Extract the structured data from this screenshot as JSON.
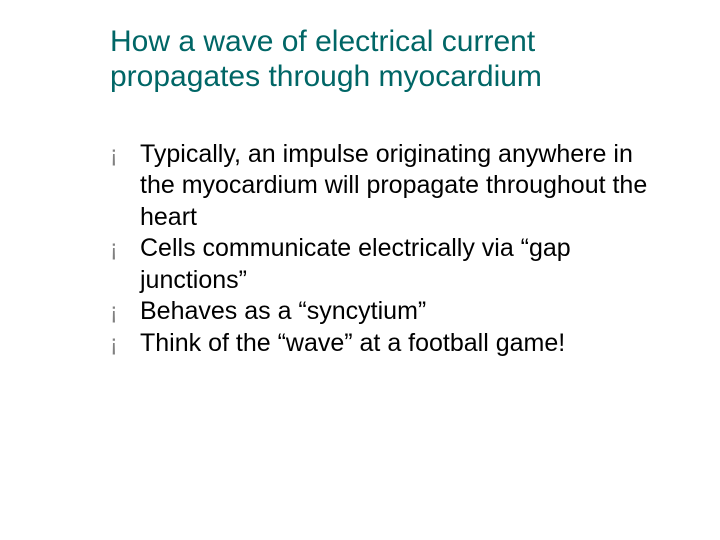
{
  "slide": {
    "title": "How a wave of electrical current propagates through myocardium",
    "title_color": "#006666",
    "bullet_marker": "¡",
    "bullet_marker_color": "#808080",
    "text_color": "#000000",
    "background_color": "#ffffff",
    "title_fontsize": 30,
    "body_fontsize": 25,
    "bullets": [
      "Typically, an impulse originating anywhere in the myocardium will propagate throughout the heart",
      "Cells communicate electrically via “gap junctions”",
      "Behaves as a “syncytium”",
      "Think of the “wave” at a football game!"
    ]
  }
}
